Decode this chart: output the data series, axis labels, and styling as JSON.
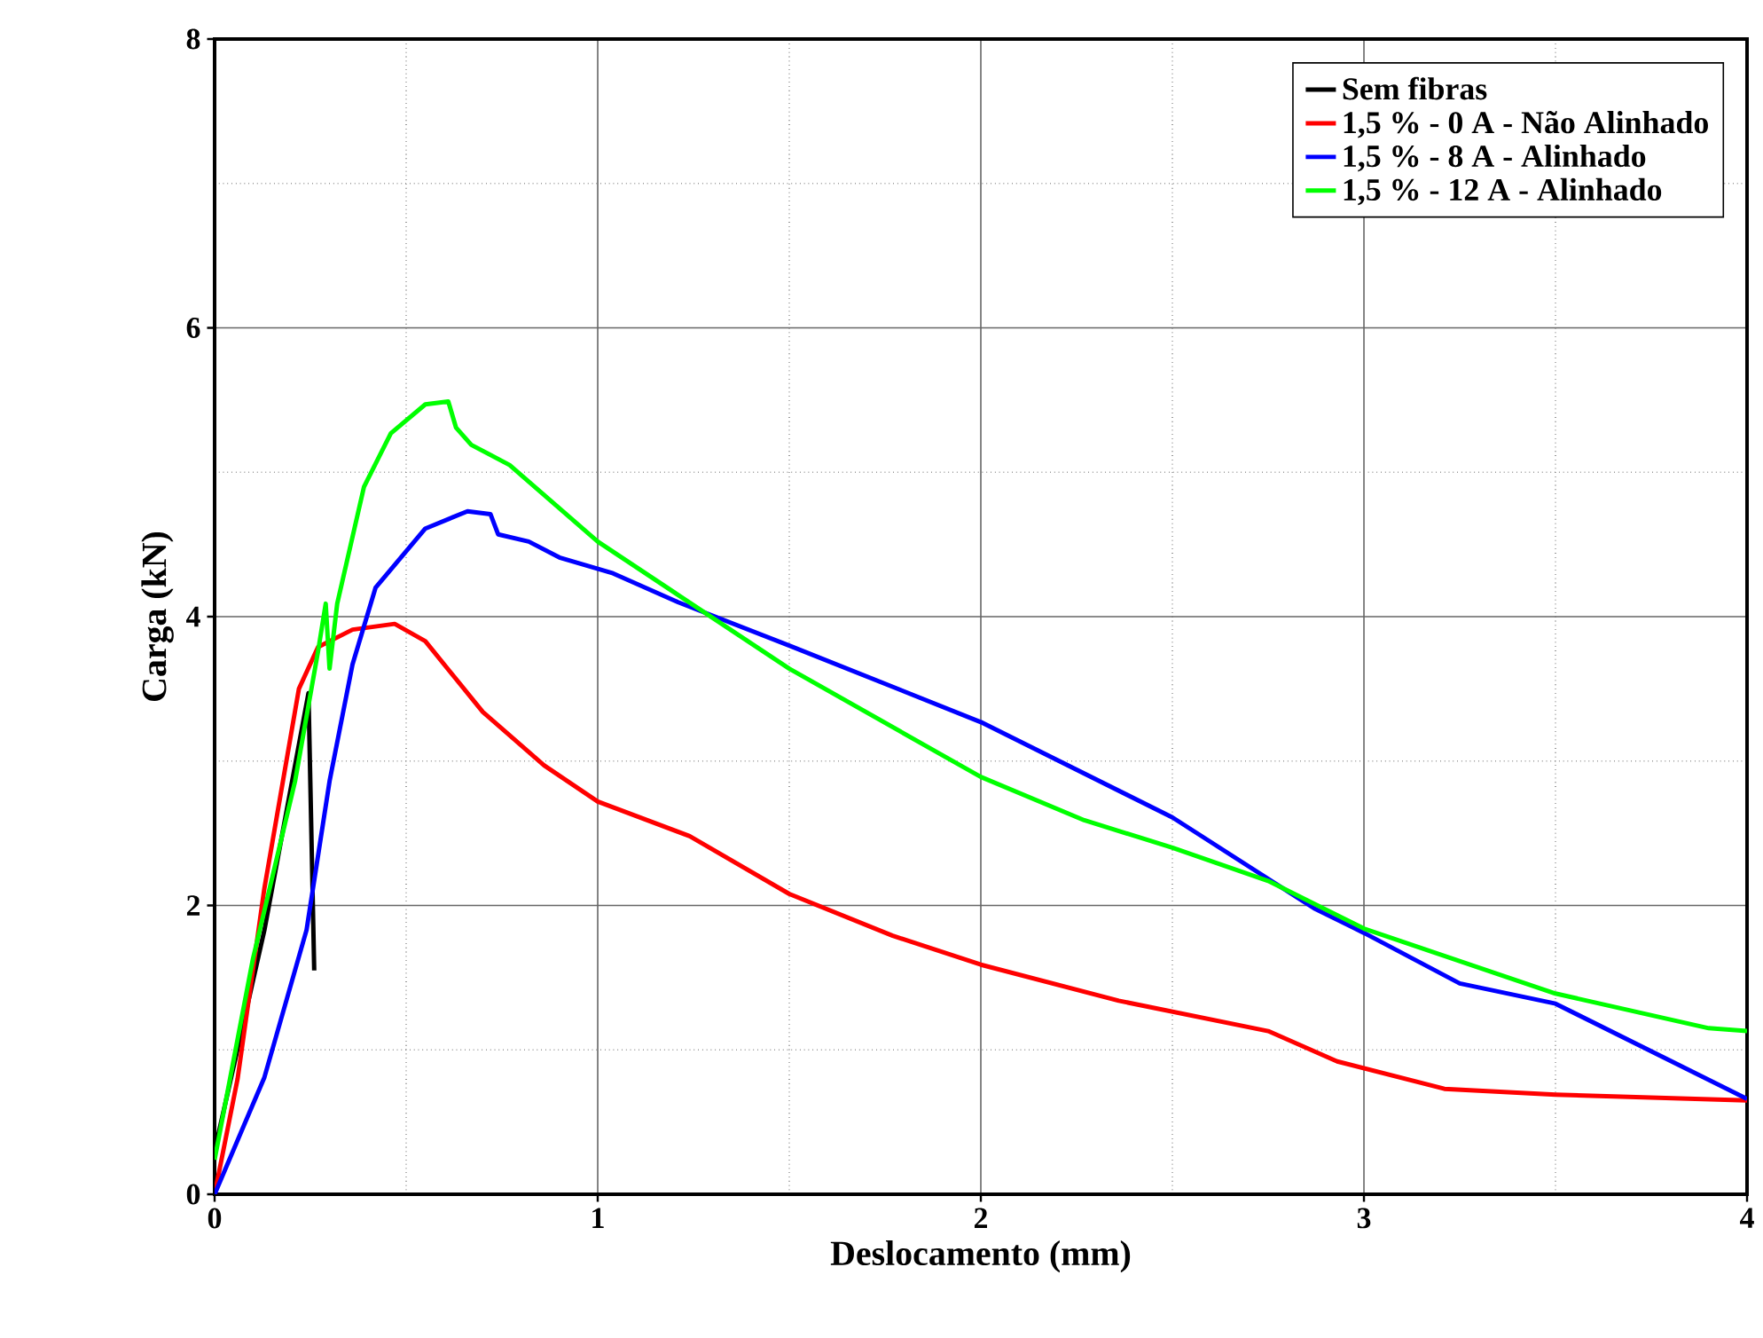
{
  "chart_data": {
    "type": "line",
    "xlabel": "Deslocamento (mm)",
    "ylabel": "Carga (kN)",
    "xlim": [
      0,
      4
    ],
    "ylim": [
      0,
      8
    ],
    "xticks": [
      0,
      1,
      2,
      3,
      4
    ],
    "yticks": [
      0,
      2,
      4,
      6,
      8
    ],
    "grid": true,
    "legend": "top right",
    "line_style": "solid",
    "marker": "none",
    "series": [
      {
        "name": "Sem fibras",
        "color": "#000000",
        "x": [
          0,
          0.13,
          0.245,
          0.26
        ],
        "values": [
          0.3,
          1.83,
          3.47,
          1.55
        ]
      },
      {
        "name": "1,5 % - 0 A   - Não Alinhado",
        "color": "#ff0000",
        "x": [
          0,
          0.06,
          0.13,
          0.22,
          0.27,
          0.36,
          0.47,
          0.55,
          0.7,
          0.86,
          1.0,
          1.24,
          1.5,
          1.77,
          2.0,
          2.36,
          2.75,
          2.93,
          3.21,
          3.5,
          4.0
        ],
        "values": [
          0,
          0.8,
          2.12,
          3.5,
          3.79,
          3.91,
          3.95,
          3.83,
          3.34,
          2.97,
          2.72,
          2.48,
          2.08,
          1.79,
          1.59,
          1.34,
          1.13,
          0.92,
          0.73,
          0.69,
          0.65
        ]
      },
      {
        "name": "1,5 % - 8 A   - Alinhado",
        "color": "#0000ff",
        "x": [
          0,
          0.13,
          0.24,
          0.3,
          0.36,
          0.42,
          0.55,
          0.66,
          0.72,
          0.74,
          0.82,
          0.9,
          1.04,
          1.21,
          1.5,
          2.0,
          2.5,
          2.87,
          3.0,
          3.25,
          3.5,
          4.0
        ],
        "values": [
          0,
          0.81,
          1.83,
          2.86,
          3.67,
          4.2,
          4.61,
          4.73,
          4.71,
          4.57,
          4.52,
          4.41,
          4.3,
          4.1,
          3.8,
          3.27,
          2.61,
          1.98,
          1.81,
          1.46,
          1.32,
          0.66
        ]
      },
      {
        "name": "1,5 % - 12 A - Alinhado",
        "color": "#00ff00",
        "x": [
          0,
          0.1,
          0.21,
          0.27,
          0.29,
          0.3,
          0.32,
          0.39,
          0.46,
          0.55,
          0.61,
          0.63,
          0.67,
          0.77,
          1.0,
          1.21,
          1.5,
          2.0,
          2.27,
          2.5,
          2.75,
          3.0,
          3.5,
          3.9,
          4.0
        ],
        "values": [
          0.24,
          1.63,
          2.86,
          3.76,
          4.09,
          3.64,
          4.09,
          4.9,
          5.27,
          5.47,
          5.49,
          5.31,
          5.19,
          5.05,
          4.52,
          4.15,
          3.64,
          2.89,
          2.59,
          2.4,
          2.17,
          1.84,
          1.39,
          1.15,
          1.13
        ]
      }
    ]
  }
}
